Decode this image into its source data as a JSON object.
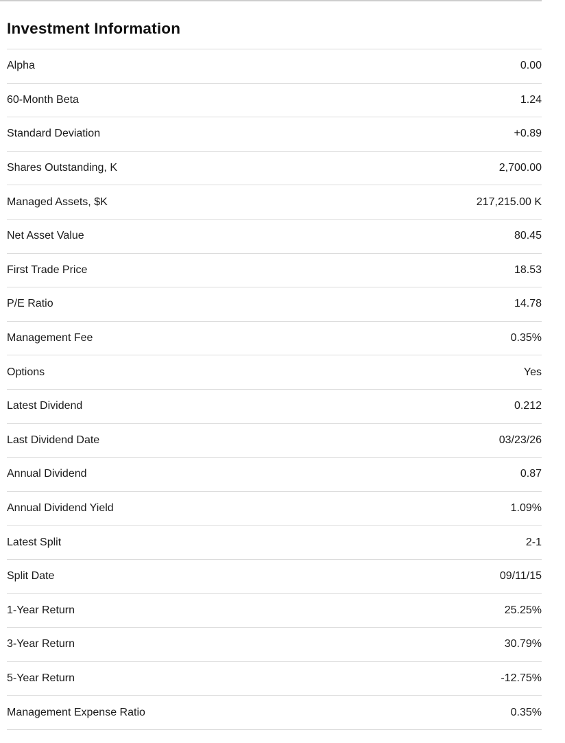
{
  "section": {
    "title": "Investment Information",
    "rows": [
      {
        "label": "Alpha",
        "value": "0.00"
      },
      {
        "label": "60-Month Beta",
        "value": "1.24"
      },
      {
        "label": "Standard Deviation",
        "value": "+0.89"
      },
      {
        "label": "Shares Outstanding, K",
        "value": "2,700.00"
      },
      {
        "label": "Managed Assets, $K",
        "value": "217,215.00 K"
      },
      {
        "label": "Net Asset Value",
        "value": "80.45"
      },
      {
        "label": "First Trade Price",
        "value": "18.53"
      },
      {
        "label": "P/E Ratio",
        "value": "14.78"
      },
      {
        "label": "Management Fee",
        "value": "0.35%"
      },
      {
        "label": "Options",
        "value": "Yes"
      },
      {
        "label": "Latest Dividend",
        "value": "0.212"
      },
      {
        "label": "Last Dividend Date",
        "value": "03/23/26"
      },
      {
        "label": "Annual Dividend",
        "value": "0.87"
      },
      {
        "label": "Annual Dividend Yield",
        "value": "1.09%"
      },
      {
        "label": "Latest Split",
        "value": "2-1"
      },
      {
        "label": "Split Date",
        "value": "09/11/15"
      },
      {
        "label": "1-Year Return",
        "value": "25.25%"
      },
      {
        "label": "3-Year Return",
        "value": "30.79%"
      },
      {
        "label": "5-Year Return",
        "value": "-12.75%"
      },
      {
        "label": "Management Expense Ratio",
        "value": "0.35%"
      }
    ]
  },
  "colors": {
    "background": "#ffffff",
    "text": "#1b1b1b",
    "title_text": "#111111",
    "row_divider": "#dcdcdc",
    "top_line": "#cdcdcd"
  }
}
